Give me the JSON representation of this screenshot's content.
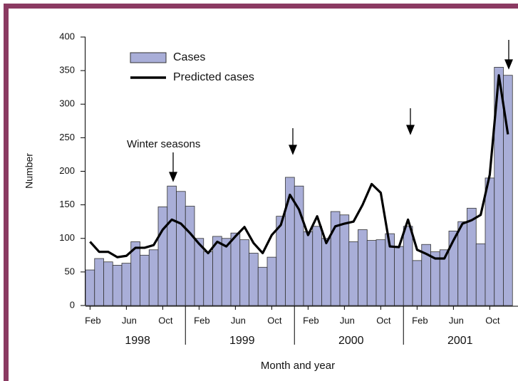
{
  "chart_data": {
    "type": "bar",
    "y_label": "Number",
    "x_label": "Month and year",
    "annotation": "Winter seasons",
    "categories": [
      "Feb",
      null,
      null,
      null,
      "Jun",
      null,
      null,
      null,
      "Oct",
      null,
      null,
      null,
      "Feb",
      null,
      null,
      null,
      "Jun",
      null,
      null,
      null,
      "Oct",
      null,
      null,
      null,
      "Feb",
      null,
      null,
      null,
      "Jun",
      null,
      null,
      null,
      "Oct",
      null,
      null,
      null,
      "Feb",
      null,
      null,
      null,
      "Jun",
      null,
      null,
      null,
      "Oct",
      null,
      null
    ],
    "years": [
      "1998",
      "1999",
      "2000",
      "2001"
    ],
    "series": [
      {
        "name": "Cases",
        "color": "#a9aed8",
        "type": "bar",
        "values": [
          53,
          70,
          65,
          60,
          63,
          95,
          75,
          83,
          147,
          178,
          170,
          148,
          100,
          80,
          103,
          100,
          108,
          98,
          78,
          57,
          72,
          133,
          191,
          178,
          110,
          118,
          100,
          140,
          135,
          95,
          113,
          97,
          98,
          107,
          88,
          118,
          67,
          91,
          80,
          83,
          111,
          125,
          145,
          92,
          190,
          355,
          343
        ]
      },
      {
        "name": "Predicted cases",
        "color": "#000000",
        "type": "line",
        "values": [
          95,
          80,
          80,
          72,
          74,
          86,
          86,
          90,
          113,
          128,
          122,
          108,
          92,
          78,
          95,
          88,
          103,
          117,
          93,
          78,
          105,
          120,
          165,
          143,
          105,
          133,
          93,
          118,
          122,
          125,
          150,
          181,
          168,
          88,
          87,
          128,
          83,
          77,
          70,
          70,
          97,
          122,
          127,
          135,
          195,
          343,
          255
        ]
      }
    ],
    "ylim": [
      0,
      400
    ],
    "yticks": [
      0,
      50,
      100,
      150,
      200,
      250,
      300,
      350,
      400
    ]
  }
}
